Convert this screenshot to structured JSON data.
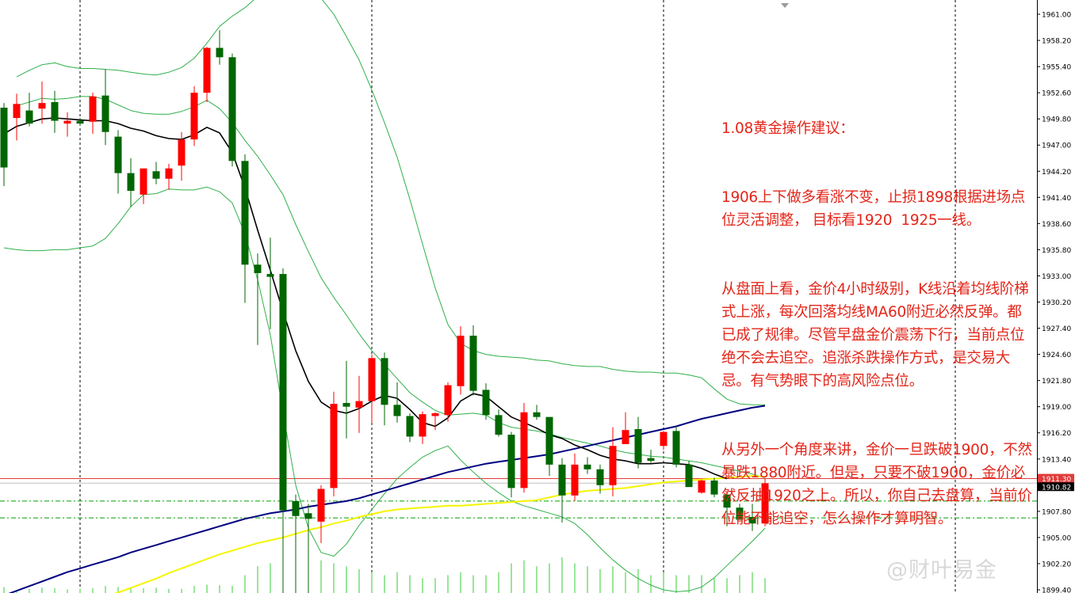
{
  "chart_data": {
    "type": "candlestick",
    "symbol": "",
    "ylim": [
      1898.6,
      1962.0
    ],
    "price_ticks": [
      "1961.00",
      "1958.20",
      "1955.40",
      "1952.60",
      "1949.80",
      "1947.00",
      "1944.20",
      "1941.40",
      "1938.60",
      "1935.80",
      "1933.00",
      "1930.20",
      "1927.40",
      "1924.60",
      "1921.80",
      "1919.00",
      "1916.20",
      "1913.40",
      "1910.60",
      "1907.80",
      "1905.00",
      "1902.20",
      "1899.40"
    ],
    "price_line_labels": {
      "ask": "1911.30",
      "bid": "1910.82"
    },
    "ask_price": 1911.3,
    "bid_price": 1910.82,
    "levels_dashed": [
      1908.9,
      1907.1
    ],
    "candles": [
      {
        "o": 1951.0,
        "h": 1951.5,
        "l": 1942.6,
        "c": 1944.6
      },
      {
        "o": 1949.9,
        "h": 1952.5,
        "l": 1947.5,
        "c": 1951.4
      },
      {
        "o": 1950.7,
        "h": 1952.6,
        "l": 1949.0,
        "c": 1949.3
      },
      {
        "o": 1950.9,
        "h": 1953.8,
        "l": 1949.3,
        "c": 1951.5
      },
      {
        "o": 1951.6,
        "h": 1952.8,
        "l": 1948.3,
        "c": 1949.6
      },
      {
        "o": 1949.3,
        "h": 1950.5,
        "l": 1947.9,
        "c": 1949.6
      },
      {
        "o": 1949.6,
        "h": 1949.9,
        "l": 1949.1,
        "c": 1949.3
      },
      {
        "o": 1949.5,
        "h": 1952.6,
        "l": 1948.2,
        "c": 1952.2
      },
      {
        "o": 1952.3,
        "h": 1955.1,
        "l": 1947.0,
        "c": 1948.4
      },
      {
        "o": 1947.9,
        "h": 1948.6,
        "l": 1941.8,
        "c": 1944.0
      },
      {
        "o": 1944.0,
        "h": 1945.6,
        "l": 1940.4,
        "c": 1942.1
      },
      {
        "o": 1941.7,
        "h": 1944.3,
        "l": 1940.7,
        "c": 1944.5
      },
      {
        "o": 1944.2,
        "h": 1945.2,
        "l": 1942.8,
        "c": 1943.4
      },
      {
        "o": 1943.4,
        "h": 1945.0,
        "l": 1942.2,
        "c": 1944.5
      },
      {
        "o": 1944.8,
        "h": 1948.4,
        "l": 1943.2,
        "c": 1947.6
      },
      {
        "o": 1947.6,
        "h": 1953.3,
        "l": 1946.9,
        "c": 1952.6
      },
      {
        "o": 1952.6,
        "h": 1957.5,
        "l": 1951.6,
        "c": 1957.4
      },
      {
        "o": 1957.4,
        "h": 1959.3,
        "l": 1955.6,
        "c": 1956.4
      },
      {
        "o": 1956.4,
        "h": 1956.8,
        "l": 1944.7,
        "c": 1945.3
      },
      {
        "o": 1945.3,
        "h": 1946.0,
        "l": 1930.1,
        "c": 1934.2
      },
      {
        "o": 1934.2,
        "h": 1935.4,
        "l": 1925.6,
        "c": 1933.3
      },
      {
        "o": 1933.2,
        "h": 1937.1,
        "l": 1927.3,
        "c": 1932.9
      },
      {
        "o": 1933.2,
        "h": 1933.8,
        "l": 1898.6,
        "c": 1907.9
      },
      {
        "o": 1908.9,
        "h": 1909.6,
        "l": 1898.9,
        "c": 1907.3
      },
      {
        "o": 1907.6,
        "h": 1908.6,
        "l": 1898.9,
        "c": 1907.0
      },
      {
        "o": 1906.7,
        "h": 1910.6,
        "l": 1904.4,
        "c": 1910.2
      },
      {
        "o": 1910.3,
        "h": 1920.6,
        "l": 1909.4,
        "c": 1919.3
      },
      {
        "o": 1919.4,
        "h": 1923.9,
        "l": 1915.6,
        "c": 1919.0
      },
      {
        "o": 1918.9,
        "h": 1922.3,
        "l": 1916.2,
        "c": 1919.6
      },
      {
        "o": 1919.6,
        "h": 1924.6,
        "l": 1917.3,
        "c": 1924.2
      },
      {
        "o": 1924.2,
        "h": 1924.8,
        "l": 1917.0,
        "c": 1919.2
      },
      {
        "o": 1919.2,
        "h": 1921.6,
        "l": 1917.3,
        "c": 1918.0
      },
      {
        "o": 1918.0,
        "h": 1918.3,
        "l": 1915.2,
        "c": 1915.8
      },
      {
        "o": 1915.8,
        "h": 1918.5,
        "l": 1915.0,
        "c": 1918.2
      },
      {
        "o": 1918.0,
        "h": 1918.4,
        "l": 1916.5,
        "c": 1918.3
      },
      {
        "o": 1918.1,
        "h": 1921.6,
        "l": 1917.4,
        "c": 1921.3
      },
      {
        "o": 1921.2,
        "h": 1927.6,
        "l": 1920.3,
        "c": 1926.6
      },
      {
        "o": 1926.6,
        "h": 1927.7,
        "l": 1920.2,
        "c": 1920.7
      },
      {
        "o": 1920.8,
        "h": 1921.5,
        "l": 1917.6,
        "c": 1918.1
      },
      {
        "o": 1918.1,
        "h": 1918.7,
        "l": 1915.8,
        "c": 1916.0
      },
      {
        "o": 1916.0,
        "h": 1916.3,
        "l": 1909.3,
        "c": 1910.3
      },
      {
        "o": 1910.3,
        "h": 1919.4,
        "l": 1909.8,
        "c": 1918.4
      },
      {
        "o": 1918.4,
        "h": 1919.2,
        "l": 1917.6,
        "c": 1917.9
      },
      {
        "o": 1917.9,
        "h": 1917.6,
        "l": 1911.6,
        "c": 1912.8
      },
      {
        "o": 1912.8,
        "h": 1913.5,
        "l": 1906.6,
        "c": 1909.5
      },
      {
        "o": 1909.5,
        "h": 1914.0,
        "l": 1908.9,
        "c": 1912.8
      },
      {
        "o": 1912.8,
        "h": 1913.6,
        "l": 1911.8,
        "c": 1912.3
      },
      {
        "o": 1912.3,
        "h": 1912.8,
        "l": 1909.7,
        "c": 1910.6
      },
      {
        "o": 1910.6,
        "h": 1916.8,
        "l": 1909.4,
        "c": 1914.8
      },
      {
        "o": 1915.0,
        "h": 1918.4,
        "l": 1915.0,
        "c": 1916.5
      },
      {
        "o": 1916.6,
        "h": 1917.9,
        "l": 1912.4,
        "c": 1913.0
      },
      {
        "o": 1913.5,
        "h": 1914.4,
        "l": 1913.0,
        "c": 1913.2
      },
      {
        "o": 1914.8,
        "h": 1916.4,
        "l": 1914.4,
        "c": 1916.3
      },
      {
        "o": 1916.4,
        "h": 1916.9,
        "l": 1912.5,
        "c": 1912.8
      },
      {
        "o": 1912.8,
        "h": 1913.2,
        "l": 1910.5,
        "c": 1910.4
      },
      {
        "o": 1909.8,
        "h": 1911.2,
        "l": 1909.7,
        "c": 1911.1
      },
      {
        "o": 1911.1,
        "h": 1911.4,
        "l": 1909.3,
        "c": 1909.6
      },
      {
        "o": 1909.6,
        "h": 1909.8,
        "l": 1906.2,
        "c": 1908.2
      },
      {
        "o": 1908.2,
        "h": 1908.6,
        "l": 1906.9,
        "c": 1906.9
      },
      {
        "o": 1907.2,
        "h": 1908.6,
        "l": 1905.7,
        "c": 1906.5
      },
      {
        "o": 1906.5,
        "h": 1911.3,
        "l": 1906.2,
        "c": 1910.8
      }
    ],
    "bollinger_upper": [
      null,
      1954.3,
      1955.0,
      1955.6,
      1955.8,
      1955.4,
      1955.2,
      1955.2,
      1955.1,
      1955.0,
      1954.8,
      1954.6,
      1954.5,
      1954.8,
      1955.3,
      1956.3,
      1957.9,
      1959.7,
      1960.8,
      1961.7,
      1962.9,
      1964.4,
      1965.3,
      1964.2,
      1963.5,
      1962.7,
      1961.0,
      1958.6,
      1956.1,
      1952.9,
      1949.4,
      1945.7,
      1941.2,
      1936.4,
      1931.7,
      1927.8,
      1925.8,
      1925.0,
      1924.6,
      1924.4,
      1924.3,
      1924.2,
      1924.0,
      1923.9,
      1923.6,
      1923.4,
      1923.3,
      1923.3,
      1923.0,
      1922.8,
      1922.7,
      1922.7,
      1922.6,
      1922.6,
      1922.4,
      1922.1,
      1920.9,
      1919.8,
      1919.3,
      1919.2,
      1919.2
    ],
    "bollinger_mid": [
      null,
      1951.2,
      1951.6,
      1952.0,
      1951.9,
      1952.0,
      1952.2,
      1952.2,
      1951.9,
      1951.3,
      1950.7,
      1950.4,
      1950.3,
      1950.3,
      1950.6,
      1951.1,
      1951.8,
      1950.9,
      1949.4,
      1947.5,
      1945.8,
      1943.8,
      1941.7,
      1938.5,
      1935.6,
      1932.8,
      1930.7,
      1928.8,
      1926.8,
      1925.0,
      1923.5,
      1922.0,
      1920.5,
      1919.5,
      1918.6,
      1918.1,
      1918.2,
      1918.3,
      1918.1,
      1917.3,
      1916.8,
      1916.6,
      1916.4,
      1916.1,
      1915.7,
      1915.4,
      1915.1,
      1914.8,
      1914.4,
      1914.1,
      1913.9,
      1913.7,
      1913.6,
      1913.4,
      1913.2,
      1913.0,
      1912.7,
      1912.4,
      1912.1,
      1911.8,
      1911.4
    ],
    "bollinger_lower": [
      1936.0,
      1935.8,
      1935.7,
      1935.7,
      1935.8,
      1935.8,
      1936.0,
      1936.2,
      1937.0,
      1938.6,
      1940.4,
      1941.7,
      1941.8,
      1942.3,
      1942.2,
      1942.2,
      1942.5,
      1942.0,
      1940.8,
      1937.5,
      1932.6,
      1926.7,
      1918.4,
      1910.6,
      1906.0,
      1903.4,
      1903.0,
      1904.3,
      1906.3,
      1908.0,
      1909.7,
      1911.3,
      1912.5,
      1913.6,
      1914.3,
      1914.8,
      1913.3,
      1912.0,
      1910.8,
      1909.8,
      1908.9,
      1908.4,
      1908.0,
      1907.6,
      1907.2,
      1906.5,
      1905.3,
      1903.9,
      1902.6,
      1901.5,
      1900.6,
      1899.9,
      1899.4,
      1899.2,
      1899.3,
      1899.7,
      1900.7,
      1902.0,
      1903.3,
      1904.6,
      1906.0
    ],
    "ma_black": [
      1948.2,
      1949.0,
      1949.4,
      1949.8,
      1949.9,
      1949.8,
      1949.7,
      1949.6,
      1949.6,
      1949.3,
      1948.8,
      1948.5,
      1948.0,
      1947.7,
      1947.6,
      1948.1,
      1948.9,
      1948.3,
      1946.2,
      1942.4,
      1937.9,
      1933.6,
      1929.2,
      1925.0,
      1921.7,
      1919.5,
      1918.6,
      1918.3,
      1918.8,
      1919.6,
      1920.2,
      1919.9,
      1918.7,
      1917.3,
      1916.9,
      1917.8,
      1919.6,
      1920.4,
      1920.1,
      1919.0,
      1917.9,
      1917.3,
      1916.7,
      1916.0,
      1915.6,
      1914.9,
      1914.4,
      1913.8,
      1913.4,
      1913.2,
      1912.9,
      1912.9,
      1913.0,
      1912.9,
      1912.8,
      1912.4,
      1911.8,
      1911.3
    ],
    "ma_blue": [
      1898.8,
      1899.3,
      1899.8,
      1900.3,
      1900.8,
      1901.3,
      1901.7,
      1902.1,
      1902.5,
      1902.9,
      1903.4,
      1903.8,
      1904.2,
      1904.6,
      1905.0,
      1905.4,
      1905.8,
      1906.2,
      1906.6,
      1907.0,
      1907.3,
      1907.6,
      1907.8,
      1908.0,
      1908.3,
      1908.5,
      1908.7,
      1908.9,
      1909.2,
      1909.6,
      1910.0,
      1910.4,
      1910.8,
      1911.2,
      1911.6,
      1912.0,
      1912.3,
      1912.6,
      1912.9,
      1913.1,
      1913.3,
      1913.5,
      1913.7,
      1913.9,
      1914.2,
      1914.5,
      1914.8,
      1915.1,
      1915.4,
      1915.7,
      1916.0,
      1916.3,
      1916.6,
      1916.9,
      1917.3,
      1917.7,
      1918.0,
      1918.3,
      1918.6,
      1918.9,
      1919.1
    ],
    "ma_yellow": [
      null,
      null,
      null,
      null,
      null,
      null,
      null,
      null,
      1898.7,
      1899.1,
      1899.6,
      1900.1,
      1900.6,
      1901.2,
      1901.7,
      1902.2,
      1902.7,
      1903.2,
      1903.6,
      1904.0,
      1904.4,
      1904.7,
      1905.0,
      1905.4,
      1905.8,
      1906.1,
      1906.5,
      1906.8,
      1907.2,
      1907.5,
      1907.8,
      1908.0,
      1908.1,
      1908.2,
      1908.3,
      1908.4,
      1908.4,
      1908.5,
      1908.6,
      1908.7,
      1908.8,
      1908.9,
      1909.0,
      1909.3,
      1909.6,
      1909.8,
      1910.0,
      1910.1,
      1910.2,
      1910.3,
      1910.5,
      1910.7,
      1910.9,
      1911.0,
      1911.1,
      1911.2,
      1911.3,
      1911.4,
      1911.5,
      1911.6,
      1911.5
    ],
    "volume": [
      0.1,
      0.05,
      0.07,
      0.09,
      0.08,
      0.06,
      0.07,
      0.08,
      0.12,
      0.1,
      0.1,
      0.08,
      0.09,
      0.07,
      0.07,
      0.12,
      0.14,
      0.13,
      0.12,
      0.3,
      0.45,
      0.5,
      0.9,
      0.85,
      0.75,
      0.55,
      0.5,
      0.45,
      0.4,
      0.35,
      0.3,
      0.35,
      0.3,
      0.25,
      0.25,
      0.3,
      0.35,
      0.3,
      0.3,
      0.35,
      0.5,
      0.55,
      0.45,
      0.5,
      0.6,
      0.5,
      0.45,
      0.4,
      0.45,
      0.35,
      0.4,
      0.3,
      0.35,
      0.3,
      0.3,
      0.3,
      0.25,
      0.25,
      0.3,
      0.35,
      0.25
    ],
    "colors": {
      "bull": "#ff0000",
      "bear": "#006600",
      "bollinger": "#2fb04a",
      "ma_black": "#000000",
      "ma_blue": "#000080",
      "ma_yellow": "#f5f500",
      "price_line": "#e03b3b",
      "level_dashed": "#00a000",
      "volume": "#33cc33",
      "axis_label_bg": "#000000"
    }
  },
  "note": {
    "lines": [
      "1.08黄金操作建议：",
      "1906上下做多看涨不变，止损1898根据进场点位灵活调整， 目标看1920  1925一线。",
      "从盘面上看，金价4小时级别，K线沿着均线阶梯式上涨，每次回落均线MA60附近必然反弹。都已成了规律。尽管早盘金价震荡下行，当前点位绝不会去追空。追涨杀跌操作方式，是交易大忌。有气势眼下的高风险点位。",
      "从另外一个角度来讲，金价一旦跌破1900，不然暴跌1880附近。但是，只要不破1900，金价必然反抽1920之上。所以，你自己去盘算，当前价位能不能追空，怎么操作才算明智。"
    ]
  },
  "watermark": {
    "text": "@财叶易金"
  }
}
